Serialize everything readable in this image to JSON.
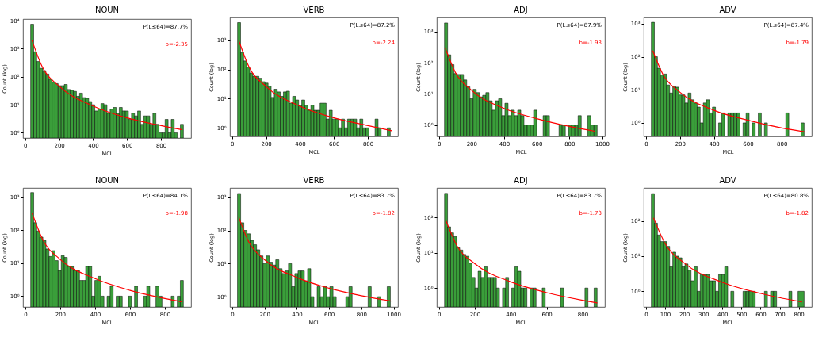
{
  "chart_data": [
    {
      "type": "histogram",
      "title": "NOUN",
      "xlabel": "MCL",
      "ylabel": "Count (log)",
      "annotations": [
        "P(L≤64)=87.7%",
        "b=-2.35"
      ],
      "color": "#3a9e3a",
      "log": "y",
      "xlim": [
        -13,
        977
      ],
      "xticks": [
        0,
        200,
        400,
        600,
        800
      ],
      "ylim": [
        0.65,
        11500
      ],
      "yticks": [
        {
          "value": 1,
          "label": "10⁰"
        },
        {
          "value": 10,
          "label": "10¹"
        },
        {
          "value": 100,
          "label": "10²"
        },
        {
          "value": 1000,
          "label": "10³"
        },
        {
          "value": 10000,
          "label": "10⁴"
        }
      ],
      "bins": [
        32,
        50,
        68,
        86,
        104,
        122,
        140,
        158,
        176,
        194,
        212,
        230,
        248,
        266,
        284,
        302,
        320,
        338,
        356,
        374,
        392,
        410,
        428,
        446,
        464,
        482,
        500,
        518,
        536,
        554,
        572,
        590,
        608,
        626,
        644,
        662,
        680,
        698,
        716,
        734,
        752,
        770,
        788,
        806,
        824,
        842,
        860,
        878,
        896,
        914,
        932
      ],
      "values": [
        7500,
        780,
        350,
        200,
        165,
        125,
        82,
        64,
        57,
        48,
        48,
        53,
        35,
        33,
        30,
        20,
        26,
        18,
        17,
        13,
        10,
        6,
        7,
        11,
        10,
        5,
        7,
        8,
        5,
        8,
        6,
        6,
        3,
        5,
        4,
        6,
        2,
        4,
        4,
        2,
        5,
        2,
        1,
        1,
        3,
        1,
        3,
        1,
        null,
        2
      ],
      "series": [
        {
          "type": "line",
          "color": "#ff0000",
          "x": [
            40,
            100,
            200,
            400,
            600,
            800,
            920
          ],
          "values": [
            2000,
            230,
            46,
            9,
            3.4,
            1.8,
            1.3
          ]
        }
      ]
    },
    {
      "type": "histogram",
      "title": "VERB",
      "xlabel": "MCL",
      "ylabel": "Count (log)",
      "annotations": [
        "P(L≤64)=87.2%",
        "b=-2.24"
      ],
      "color": "#3a9e3a",
      "log": "y",
      "xlim": [
        -13,
        977
      ],
      "xticks": [
        0,
        200,
        400,
        600,
        800
      ],
      "ylim": [
        0.51,
        6000
      ],
      "yticks": [
        {
          "value": 1,
          "label": "10⁰"
        },
        {
          "value": 10,
          "label": "10¹"
        },
        {
          "value": 100,
          "label": "10²"
        },
        {
          "value": 1000,
          "label": "10³"
        }
      ],
      "bins": [
        32,
        50,
        68,
        86,
        104,
        122,
        140,
        158,
        176,
        194,
        212,
        230,
        248,
        266,
        284,
        302,
        320,
        338,
        356,
        374,
        392,
        410,
        428,
        446,
        464,
        482,
        500,
        518,
        536,
        554,
        572,
        590,
        608,
        626,
        644,
        662,
        680,
        698,
        716,
        734,
        752,
        770,
        788,
        806,
        824,
        842,
        860,
        878,
        896,
        914,
        932
      ],
      "values": [
        4000,
        380,
        195,
        120,
        75,
        58,
        58,
        50,
        38,
        34,
        27,
        11,
        21,
        17,
        12,
        17,
        18,
        7,
        12,
        9,
        6,
        9,
        6,
        4,
        6,
        4,
        4,
        7,
        7,
        2,
        4,
        2,
        2,
        1,
        2,
        1,
        2,
        2,
        2,
        1,
        2,
        1,
        1,
        null,
        null,
        2,
        1,
        null,
        null,
        1
      ],
      "series": [
        {
          "type": "line",
          "color": "#ff0000",
          "x": [
            40,
            100,
            200,
            400,
            600,
            800,
            940
          ],
          "values": [
            950,
            120,
            26,
            5.5,
            2.2,
            1.2,
            0.8
          ]
        }
      ]
    },
    {
      "type": "histogram",
      "title": "ADJ",
      "xlabel": "MCL",
      "ylabel": "Count (log)",
      "annotations": [
        "P(L≤64)=87.9%",
        "b=-1.93"
      ],
      "color": "#3a9e3a",
      "log": "y",
      "xlim": [
        -13,
        1017
      ],
      "xticks": [
        0,
        200,
        400,
        600,
        800,
        1000
      ],
      "ylim": [
        0.43,
        2850
      ],
      "yticks": [
        {
          "value": 1,
          "label": "10⁰"
        },
        {
          "value": 10,
          "label": "10¹"
        },
        {
          "value": 100,
          "label": "10²"
        },
        {
          "value": 1000,
          "label": "10³"
        }
      ],
      "bins": [
        34,
        53.5,
        73,
        92.5,
        112,
        131.5,
        151,
        170.5,
        190,
        209.5,
        229,
        248.5,
        268,
        287.5,
        307,
        326.5,
        346,
        365.5,
        385,
        404.5,
        424,
        443.5,
        463,
        482.5,
        502,
        521.5,
        541,
        560.5,
        580,
        599.5,
        619,
        638.5,
        658,
        677.5,
        697,
        716.5,
        736,
        755.5,
        775,
        794.5,
        814,
        833.5,
        853,
        872.5,
        892,
        911.5,
        931,
        950.5,
        970
      ],
      "values": [
        1900,
        180,
        87,
        45,
        42,
        42,
        28,
        17,
        7,
        14,
        11,
        8,
        9,
        11,
        6,
        3,
        6,
        7,
        2,
        5,
        2,
        3,
        2,
        3,
        2,
        1,
        1,
        1,
        3,
        null,
        null,
        2,
        2,
        null,
        null,
        null,
        1,
        1,
        null,
        1,
        1,
        1,
        2,
        null,
        null,
        2,
        1,
        1
      ],
      "series": [
        {
          "type": "line",
          "color": "#ff0000",
          "x": [
            40,
            100,
            200,
            400,
            600,
            800,
            955
          ],
          "values": [
            290,
            50,
            13,
            3.4,
            1.6,
            0.9,
            0.63
          ]
        }
      ]
    },
    {
      "type": "histogram",
      "title": "ADV",
      "xlabel": "MCL",
      "ylabel": "Count (log)",
      "annotations": [
        "P(L≤64)=87.4%",
        "b=-1.79"
      ],
      "color": "#3a9e3a",
      "log": "y",
      "xlim": [
        -14,
        976
      ],
      "xticks": [
        0,
        200,
        400,
        600,
        800
      ],
      "ylim": [
        0.39,
        1540
      ],
      "yticks": [
        {
          "value": 1,
          "label": "10⁰"
        },
        {
          "value": 10,
          "label": "10¹"
        },
        {
          "value": 100,
          "label": "10²"
        },
        {
          "value": 1000,
          "label": "10³"
        }
      ],
      "bins": [
        31,
        49,
        67,
        85,
        103,
        121,
        139,
        157,
        175,
        193,
        211,
        229,
        247,
        265,
        283,
        301,
        319,
        337,
        355,
        373,
        391,
        409,
        427,
        445,
        463,
        481,
        499,
        517,
        535,
        553,
        571,
        589,
        607,
        625,
        643,
        661,
        679,
        697,
        715,
        733,
        751,
        769,
        787,
        805,
        823,
        841,
        859,
        877,
        895,
        913,
        931
      ],
      "values": [
        1100,
        100,
        45,
        28,
        30,
        14,
        8,
        13,
        12,
        7,
        7,
        4,
        8,
        5,
        4,
        3,
        1,
        4,
        5,
        2,
        3,
        null,
        1,
        2,
        null,
        2,
        2,
        2,
        2,
        null,
        1,
        2,
        null,
        1,
        null,
        2,
        null,
        1,
        null,
        null,
        null,
        null,
        null,
        null,
        2,
        null,
        null,
        null,
        null,
        1
      ],
      "series": [
        {
          "type": "line",
          "color": "#ff0000",
          "x": [
            40,
            100,
            200,
            400,
            600,
            800,
            930
          ],
          "values": [
            150,
            29,
            8.4,
            2.4,
            1.2,
            0.7,
            0.54
          ]
        }
      ]
    },
    {
      "type": "histogram",
      "title": "NOUN",
      "xlabel": "MCL",
      "ylabel": "Count (log)",
      "annotations": [
        "P(L≤64)=84.1%",
        "b=-1.98"
      ],
      "color": "#3a9e3a",
      "log": "y",
      "xlim": [
        -13,
        950
      ],
      "xticks": [
        0,
        200,
        400,
        600,
        800
      ],
      "ylim": [
        0.47,
        1920
      ],
      "yticks": [
        {
          "value": 1,
          "label": "10⁰"
        },
        {
          "value": 10,
          "label": "10¹"
        },
        {
          "value": 100,
          "label": "10²"
        },
        {
          "value": 1000,
          "label": "10³"
        }
      ],
      "bins": [
        31,
        48.5,
        66,
        83.5,
        101,
        118.5,
        136,
        153.5,
        171,
        188.5,
        206,
        223.5,
        241,
        258.5,
        276,
        293.5,
        311,
        328.5,
        346,
        363.5,
        381,
        398.5,
        416,
        433.5,
        451,
        468.5,
        486,
        503.5,
        521,
        538.5,
        556,
        573.5,
        591,
        608.5,
        626,
        643.5,
        661,
        678.5,
        696,
        713.5,
        731,
        748.5,
        766,
        783.5,
        801,
        818.5,
        836,
        853.5,
        871,
        888.5,
        906
      ],
      "values": [
        1400,
        170,
        95,
        62,
        49,
        27,
        16,
        24,
        12,
        6,
        17,
        15,
        8,
        8,
        6,
        6,
        3,
        3,
        8,
        8,
        1,
        3,
        4,
        1,
        null,
        1,
        2,
        null,
        1,
        1,
        null,
        null,
        1,
        null,
        2,
        null,
        null,
        1,
        2,
        null,
        null,
        2,
        1,
        null,
        null,
        null,
        1,
        null,
        1,
        3
      ],
      "series": [
        {
          "type": "line",
          "color": "#ff0000",
          "x": [
            40,
            100,
            200,
            400,
            600,
            800,
            895
          ],
          "values": [
            320,
            52,
            13,
            3.4,
            1.5,
            0.85,
            0.68
          ]
        }
      ]
    },
    {
      "type": "histogram",
      "title": "VERB",
      "xlabel": "MCL",
      "ylabel": "Count (log)",
      "annotations": [
        "P(L≤64)=83.7%",
        "b=-1.82"
      ],
      "color": "#3a9e3a",
      "log": "y",
      "xlim": [
        -15,
        1027
      ],
      "xticks": [
        0,
        200,
        400,
        600,
        800,
        1000
      ],
      "ylim": [
        0.49,
        1910
      ],
      "yticks": [
        {
          "value": 1,
          "label": "10⁰"
        },
        {
          "value": 10,
          "label": "10¹"
        },
        {
          "value": 100,
          "label": "10²"
        },
        {
          "value": 1000,
          "label": "10³"
        }
      ],
      "bins": [
        32,
        51.75,
        71.5,
        91.25,
        111,
        130.75,
        150.5,
        170.25,
        190,
        209.75,
        229.5,
        249.25,
        269,
        288.75,
        308.5,
        328.25,
        348,
        367.75,
        387.5,
        407.25,
        427,
        446.75,
        466.5,
        486.25,
        506,
        525.75,
        545.5,
        565.25,
        585,
        604.75,
        624.5,
        644.25,
        664,
        683.75,
        703.5,
        723.25,
        743,
        762.75,
        782.5,
        802.25,
        822,
        841.75,
        861.5,
        881.25,
        901,
        920.75,
        940.5,
        960.25,
        980
      ],
      "values": [
        1300,
        170,
        100,
        79,
        50,
        37,
        26,
        17,
        10,
        17,
        11,
        9,
        13,
        7,
        5,
        6,
        10,
        2,
        5,
        6,
        6,
        3,
        7,
        1,
        null,
        2,
        1,
        2,
        1,
        2,
        1,
        null,
        null,
        null,
        1,
        2,
        null,
        null,
        null,
        null,
        null,
        2,
        null,
        null,
        1,
        null,
        null,
        2
      ],
      "series": [
        {
          "type": "line",
          "color": "#ff0000",
          "x": [
            40,
            100,
            200,
            400,
            600,
            800,
            985
          ],
          "values": [
            250,
            47,
            13,
            3.8,
            1.8,
            1.07,
            0.74
          ]
        }
      ]
    },
    {
      "type": "histogram",
      "title": "ADJ",
      "xlabel": "MCL",
      "ylabel": "Count (log)",
      "annotations": [
        "P(L≤64)=83.7%",
        "b=-1.73"
      ],
      "color": "#3a9e3a",
      "log": "y",
      "xlim": [
        -12,
        924
      ],
      "xticks": [
        0,
        200,
        400,
        600,
        800
      ],
      "ylim": [
        0.29,
        700
      ],
      "yticks": [
        {
          "value": 1,
          "label": "10⁰"
        },
        {
          "value": 10,
          "label": "10¹"
        },
        {
          "value": 100,
          "label": "10²"
        }
      ],
      "bins": [
        31,
        48,
        65,
        82,
        99,
        116,
        133,
        150,
        167,
        184,
        201,
        218,
        235,
        252,
        269,
        286,
        303,
        320,
        337,
        354,
        371,
        388,
        405,
        422,
        439,
        456,
        473,
        490,
        507,
        524,
        541,
        558,
        575,
        592,
        609,
        626,
        643,
        660,
        677,
        694,
        711,
        728,
        745,
        762,
        779,
        796,
        813,
        830,
        847,
        864,
        881
      ],
      "values": [
        490,
        55,
        37,
        29,
        14,
        12,
        9,
        8,
        5,
        2,
        1,
        3,
        2,
        4,
        2,
        2,
        2,
        1,
        null,
        1,
        2,
        null,
        1,
        4,
        3,
        1,
        1,
        null,
        1,
        1,
        null,
        null,
        1,
        null,
        null,
        null,
        null,
        null,
        1,
        null,
        null,
        null,
        null,
        null,
        null,
        null,
        1,
        null,
        null,
        1
      ],
      "series": [
        {
          "type": "line",
          "color": "#ff0000",
          "x": [
            40,
            100,
            200,
            400,
            600,
            800,
            880
          ],
          "values": [
            80,
            16,
            4.9,
            1.5,
            0.74,
            0.45,
            0.38
          ]
        }
      ]
    },
    {
      "type": "histogram",
      "title": "ADV",
      "xlabel": "MCL",
      "ylabel": "Count (log)",
      "annotations": [
        "P(L≤64)=80.8%",
        "b=-1.82"
      ],
      "color": "#3a9e3a",
      "log": "y",
      "xlim": [
        -12,
        868
      ],
      "xticks": [
        0,
        100,
        200,
        300,
        400,
        500,
        600,
        700,
        800
      ],
      "ylim": [
        0.36,
        870
      ],
      "yticks": [
        {
          "value": 1,
          "label": "10⁰"
        },
        {
          "value": 10,
          "label": "10¹"
        },
        {
          "value": 100,
          "label": "10²"
        }
      ],
      "bins": [
        28,
        44,
        60,
        76,
        92,
        108,
        124,
        140,
        156,
        172,
        188,
        204,
        220,
        236,
        252,
        268,
        284,
        300,
        316,
        332,
        348,
        364,
        380,
        396,
        412,
        428,
        444,
        460,
        476,
        492,
        508,
        524,
        540,
        556,
        572,
        588,
        604,
        620,
        636,
        652,
        668,
        684,
        700,
        716,
        732,
        748,
        764,
        780,
        796,
        812,
        828
      ],
      "values": [
        600,
        87,
        40,
        26,
        26,
        19,
        5,
        13,
        10,
        9,
        5,
        6,
        4,
        2,
        5,
        1,
        3,
        3,
        3,
        2,
        2,
        1,
        3,
        3,
        5,
        null,
        1,
        null,
        null,
        null,
        1,
        1,
        1,
        1,
        null,
        null,
        null,
        1,
        null,
        1,
        1,
        null,
        null,
        null,
        null,
        1,
        null,
        null,
        1,
        1
      ],
      "series": [
        {
          "type": "line",
          "color": "#ff0000",
          "x": [
            40,
            100,
            200,
            400,
            600,
            815
          ],
          "values": [
            120,
            23,
            6.4,
            1.8,
            0.87,
            0.5
          ]
        }
      ]
    }
  ]
}
